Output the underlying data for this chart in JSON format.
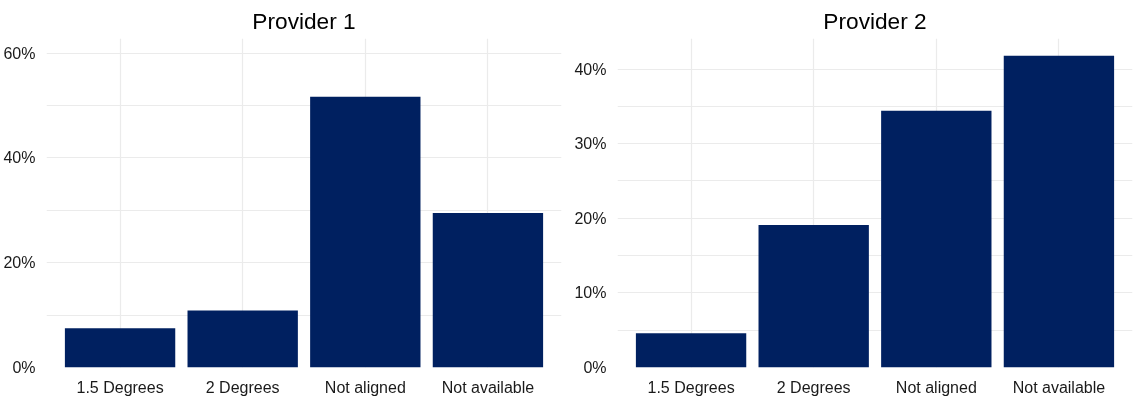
{
  "chart_data": [
    {
      "type": "bar",
      "title": "Provider 1",
      "categories": [
        "1.5 Degrees",
        "2 Degrees",
        "Not aligned",
        "Not available"
      ],
      "values": [
        7.5,
        10.9,
        51.7,
        29.5
      ],
      "color": "#002060",
      "ylim": [
        0,
        62.8
      ],
      "yticks": [
        {
          "value": 0,
          "label": "0%"
        },
        {
          "value": 10,
          "label": null
        },
        {
          "value": 20,
          "label": "20%"
        },
        {
          "value": 30,
          "label": null
        },
        {
          "value": 40,
          "label": "40%"
        },
        {
          "value": 50,
          "label": null
        },
        {
          "value": 60,
          "label": "60%"
        }
      ],
      "grid": true
    },
    {
      "type": "bar",
      "title": "Provider 2",
      "categories": [
        "1.5 Degrees",
        "2 Degrees",
        "Not aligned",
        "Not available"
      ],
      "values": [
        4.6,
        19.1,
        34.4,
        41.8
      ],
      "color": "#002060",
      "ylim": [
        0,
        44.1
      ],
      "yticks": [
        {
          "value": 0,
          "label": "0%"
        },
        {
          "value": 5,
          "label": null
        },
        {
          "value": 10,
          "label": "10%"
        },
        {
          "value": 15,
          "label": null
        },
        {
          "value": 20,
          "label": "20%"
        },
        {
          "value": 25,
          "label": null
        },
        {
          "value": 30,
          "label": "30%"
        },
        {
          "value": 35,
          "label": null
        },
        {
          "value": 40,
          "label": "40%"
        }
      ],
      "grid": true
    }
  ]
}
